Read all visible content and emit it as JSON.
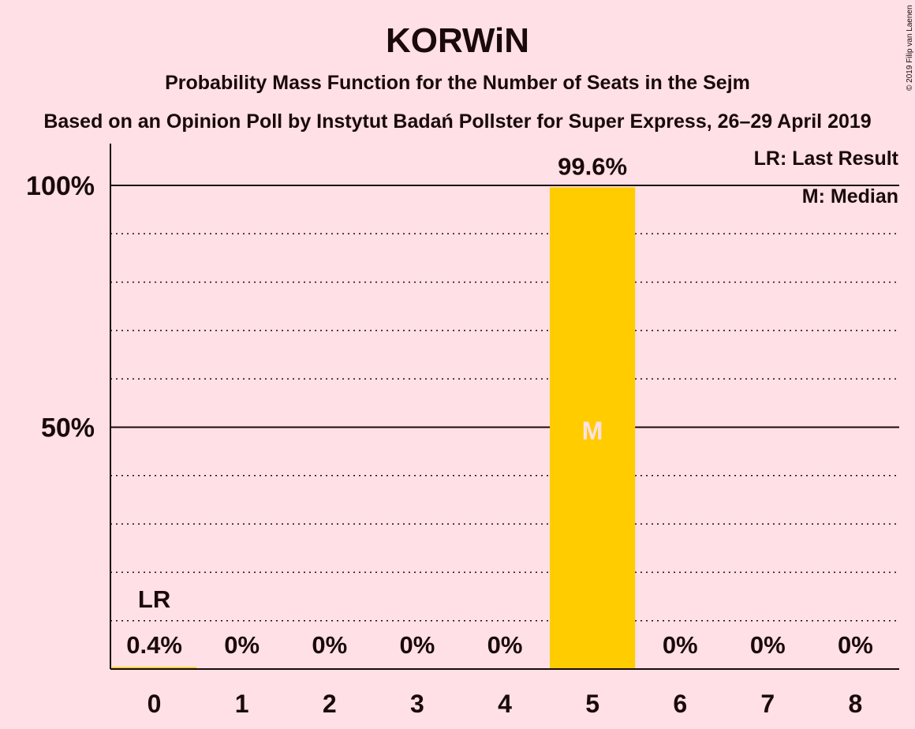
{
  "chart_data": {
    "type": "bar",
    "title": "KORWiN",
    "subtitle": "Probability Mass Function for the Number of Seats in the Sejm",
    "subtitle2": "Based on an Opinion Poll by Instytut Badań Pollster for Super Express, 26–29 April 2019",
    "copyright": "© 2019 Filip van Laenen",
    "legend": [
      "LR: Last Result",
      "M: Median"
    ],
    "legend_placement": "top-right",
    "categories": [
      "0",
      "1",
      "2",
      "3",
      "4",
      "5",
      "6",
      "7",
      "8"
    ],
    "values": [
      0.4,
      0,
      0,
      0,
      0,
      99.6,
      0,
      0,
      0
    ],
    "value_labels": [
      "0.4%",
      "0%",
      "0%",
      "0%",
      "0%",
      "99.6%",
      "0%",
      "0%",
      "0%"
    ],
    "y_ticks": [
      {
        "value": 50,
        "label": "50%"
      },
      {
        "value": 100,
        "label": "100%"
      }
    ],
    "ylim": [
      0,
      100
    ],
    "grid": "dotted every 10%, solid at 50% and 100%",
    "last_result": {
      "category": "0",
      "label": "LR"
    },
    "median": {
      "category": "5",
      "label": "M"
    },
    "colors": {
      "background": "#FFE0E6",
      "bar": "#FFCC00",
      "text": "#1a0a0a"
    }
  }
}
